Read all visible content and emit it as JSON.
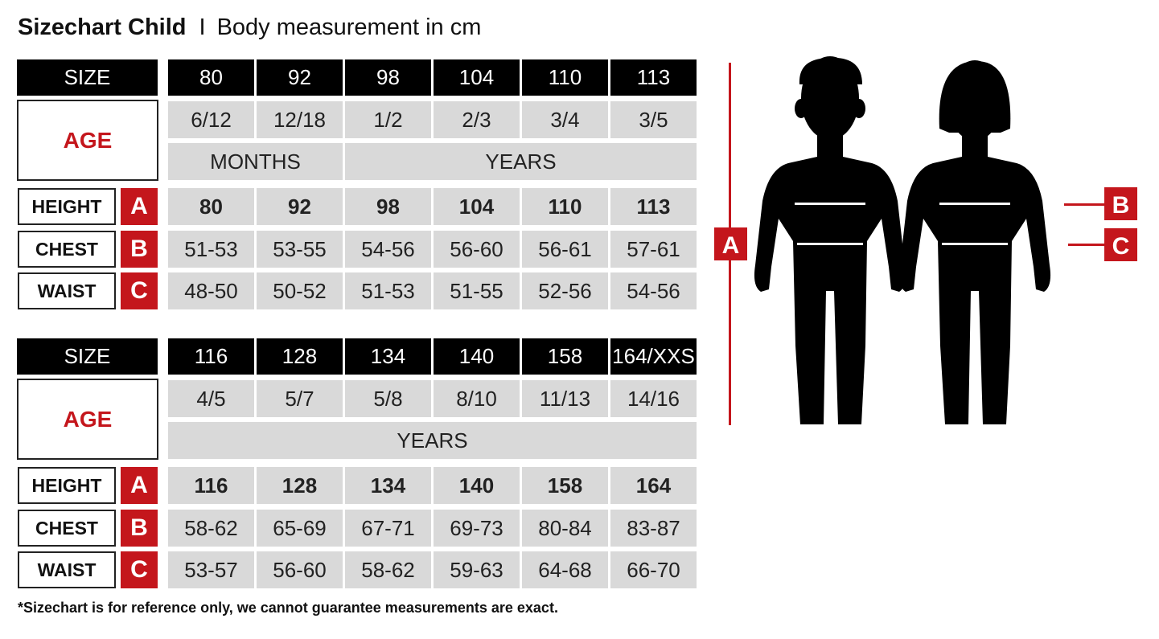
{
  "title": {
    "main": "Sizechart Child",
    "separator": "I",
    "subtitle": "Body measurement in cm"
  },
  "colors": {
    "accent_red": "#c4161c",
    "header_black": "#000000",
    "cell_gray": "#d9d9d9"
  },
  "tables": [
    {
      "size_label": "SIZE",
      "sizes": [
        "80",
        "92",
        "98",
        "104",
        "110",
        "113"
      ],
      "age_label": "AGE",
      "ages": [
        "6/12",
        "12/18",
        "1/2",
        "2/3",
        "3/4",
        "3/5"
      ],
      "age_units": [
        {
          "label": "MONTHS",
          "span": 2
        },
        {
          "label": "YEARS",
          "span": 4
        }
      ],
      "rows": [
        {
          "label": "HEIGHT",
          "letter": "A",
          "values": [
            "80",
            "92",
            "98",
            "104",
            "110",
            "113"
          ]
        },
        {
          "label": "CHEST",
          "letter": "B",
          "values": [
            "51-53",
            "53-55",
            "54-56",
            "56-60",
            "56-61",
            "57-61"
          ]
        },
        {
          "label": "WAIST",
          "letter": "C",
          "values": [
            "48-50",
            "50-52",
            "51-53",
            "51-55",
            "52-56",
            "54-56"
          ]
        }
      ]
    },
    {
      "size_label": "SIZE",
      "sizes": [
        "116",
        "128",
        "134",
        "140",
        "158",
        "164/XXS"
      ],
      "age_label": "AGE",
      "ages": [
        "4/5",
        "5/7",
        "5/8",
        "8/10",
        "11/13",
        "14/16"
      ],
      "age_units": [
        {
          "label": "YEARS",
          "span": 6
        }
      ],
      "rows": [
        {
          "label": "HEIGHT",
          "letter": "A",
          "values": [
            "116",
            "128",
            "134",
            "140",
            "158",
            "164"
          ]
        },
        {
          "label": "CHEST",
          "letter": "B",
          "values": [
            "58-62",
            "65-69",
            "67-71",
            "69-73",
            "80-84",
            "83-87"
          ]
        },
        {
          "label": "WAIST",
          "letter": "C",
          "values": [
            "53-57",
            "56-60",
            "58-62",
            "59-63",
            "64-68",
            "66-70"
          ]
        }
      ]
    }
  ],
  "figure": {
    "height_marker": "A",
    "chest_marker": "B",
    "waist_marker": "C",
    "icons": [
      "boy-silhouette",
      "girl-silhouette"
    ]
  },
  "footnote": "*Sizechart is for reference only, we cannot guarantee measurements are exact."
}
